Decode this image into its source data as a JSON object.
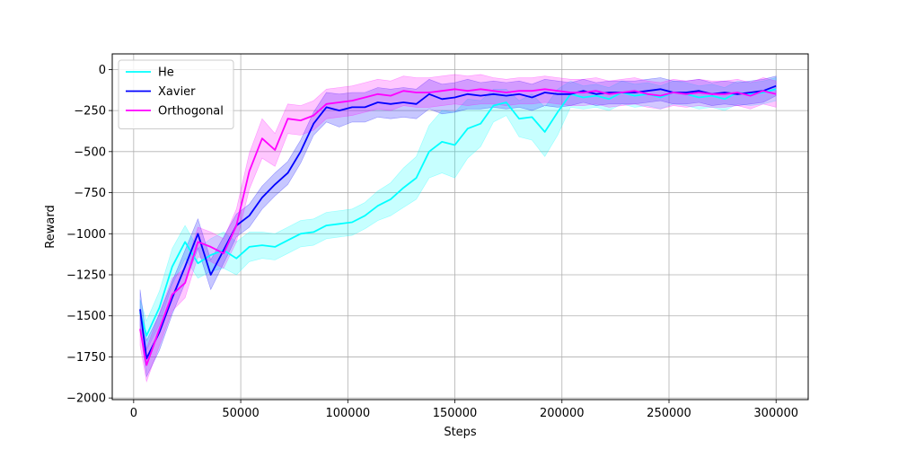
{
  "chart_data": {
    "type": "line",
    "title": "",
    "xlabel": "Steps",
    "ylabel": "Reward",
    "xlim": [
      -10000,
      315000
    ],
    "ylim": [
      -2010,
      95
    ],
    "x_ticks": [
      0,
      50000,
      100000,
      150000,
      200000,
      250000,
      300000
    ],
    "x_tick_labels": [
      "0",
      "50000",
      "100000",
      "150000",
      "200000",
      "250000",
      "300000"
    ],
    "y_ticks": [
      0,
      -250,
      -500,
      -750,
      -1000,
      -1250,
      -1500,
      -1750,
      -2000
    ],
    "y_tick_labels": [
      "0",
      "−250",
      "−500",
      "−750",
      "−1000",
      "−1250",
      "−1500",
      "−1750",
      "−2000"
    ],
    "grid": true,
    "legend_position": "top-left",
    "series": [
      {
        "name": "He",
        "color": "#00ffff",
        "x": [
          3000,
          6000,
          12000,
          18000,
          24000,
          30000,
          36000,
          42000,
          48000,
          54000,
          60000,
          66000,
          72000,
          78000,
          84000,
          90000,
          96000,
          102000,
          108000,
          114000,
          120000,
          126000,
          132000,
          138000,
          144000,
          150000,
          156000,
          162000,
          168000,
          174000,
          180000,
          186000,
          192000,
          198000,
          204000,
          210000,
          216000,
          222000,
          228000,
          234000,
          240000,
          246000,
          252000,
          258000,
          264000,
          270000,
          276000,
          282000,
          288000,
          294000,
          300000
        ],
        "values": [
          -1480,
          -1620,
          -1450,
          -1200,
          -1050,
          -1180,
          -1130,
          -1100,
          -1150,
          -1080,
          -1070,
          -1080,
          -1040,
          -1000,
          -990,
          -950,
          -940,
          -930,
          -890,
          -830,
          -790,
          -720,
          -660,
          -500,
          -440,
          -460,
          -360,
          -330,
          -220,
          -200,
          -300,
          -290,
          -380,
          -260,
          -150,
          -170,
          -160,
          -180,
          -140,
          -160,
          -150,
          -170,
          -140,
          -150,
          -170,
          -160,
          -180,
          -140,
          -150,
          -140,
          -120
        ],
        "band": [
          80,
          90,
          100,
          110,
          100,
          90,
          100,
          110,
          100,
          90,
          80,
          80,
          80,
          80,
          80,
          80,
          80,
          80,
          80,
          90,
          100,
          120,
          130,
          160,
          190,
          200,
          180,
          140,
          100,
          80,
          110,
          140,
          150,
          140,
          80,
          70,
          70,
          70,
          70,
          70,
          70,
          70,
          70,
          70,
          70,
          70,
          70,
          70,
          70,
          70,
          70
        ]
      },
      {
        "name": "Xavier",
        "color": "#0000ff",
        "x": [
          3000,
          6000,
          12000,
          18000,
          24000,
          30000,
          36000,
          42000,
          48000,
          54000,
          60000,
          66000,
          72000,
          78000,
          84000,
          90000,
          96000,
          102000,
          108000,
          114000,
          120000,
          126000,
          132000,
          138000,
          144000,
          150000,
          156000,
          162000,
          168000,
          174000,
          180000,
          186000,
          192000,
          198000,
          204000,
          210000,
          216000,
          222000,
          228000,
          234000,
          240000,
          246000,
          252000,
          258000,
          264000,
          270000,
          276000,
          282000,
          288000,
          294000,
          300000
        ],
        "values": [
          -1460,
          -1760,
          -1600,
          -1390,
          -1200,
          -1000,
          -1250,
          -1100,
          -950,
          -890,
          -780,
          -700,
          -630,
          -500,
          -330,
          -230,
          -250,
          -230,
          -230,
          -200,
          -210,
          -200,
          -210,
          -150,
          -180,
          -170,
          -150,
          -160,
          -150,
          -160,
          -150,
          -170,
          -140,
          -150,
          -150,
          -130,
          -150,
          -140,
          -140,
          -140,
          -130,
          -120,
          -140,
          -140,
          -130,
          -150,
          -140,
          -150,
          -140,
          -130,
          -100
        ],
        "band": [
          120,
          110,
          110,
          100,
          100,
          90,
          90,
          80,
          70,
          70,
          70,
          70,
          70,
          70,
          70,
          90,
          100,
          90,
          90,
          90,
          90,
          90,
          90,
          90,
          90,
          90,
          90,
          80,
          80,
          80,
          80,
          80,
          80,
          80,
          70,
          70,
          70,
          70,
          70,
          70,
          70,
          70,
          70,
          70,
          70,
          70,
          70,
          70,
          70,
          70,
          60
        ]
      },
      {
        "name": "Orthogonal",
        "color": "#ff00ff",
        "x": [
          3000,
          6000,
          12000,
          18000,
          24000,
          30000,
          36000,
          42000,
          48000,
          54000,
          60000,
          66000,
          72000,
          78000,
          84000,
          90000,
          96000,
          102000,
          108000,
          114000,
          120000,
          126000,
          132000,
          138000,
          144000,
          150000,
          156000,
          162000,
          168000,
          174000,
          180000,
          186000,
          192000,
          198000,
          204000,
          210000,
          216000,
          222000,
          228000,
          234000,
          240000,
          246000,
          252000,
          258000,
          264000,
          270000,
          276000,
          282000,
          288000,
          294000,
          300000
        ],
        "values": [
          -1580,
          -1800,
          -1580,
          -1370,
          -1300,
          -1050,
          -1080,
          -1120,
          -950,
          -620,
          -420,
          -490,
          -300,
          -310,
          -280,
          -210,
          -200,
          -190,
          -170,
          -150,
          -160,
          -130,
          -140,
          -140,
          -130,
          -120,
          -130,
          -120,
          -130,
          -140,
          -130,
          -130,
          -120,
          -130,
          -140,
          -140,
          -130,
          -150,
          -140,
          -130,
          -150,
          -160,
          -140,
          -150,
          -140,
          -150,
          -150,
          -140,
          -160,
          -130,
          -150
        ],
        "band": [
          100,
          100,
          100,
          100,
          90,
          90,
          90,
          90,
          100,
          110,
          120,
          100,
          90,
          90,
          90,
          90,
          90,
          90,
          90,
          90,
          90,
          90,
          90,
          90,
          90,
          90,
          90,
          90,
          80,
          80,
          80,
          80,
          80,
          80,
          80,
          80,
          80,
          80,
          80,
          80,
          80,
          80,
          80,
          80,
          80,
          80,
          80,
          80,
          80,
          80,
          80
        ]
      }
    ]
  }
}
